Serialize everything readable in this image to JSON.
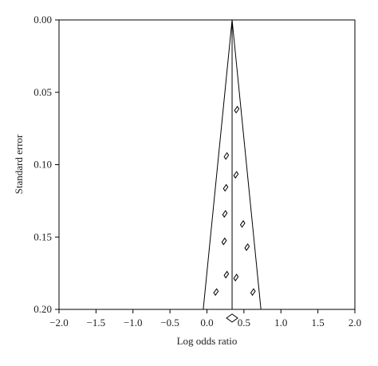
{
  "chart_data": {
    "type": "funnel",
    "xlabel": "Log odds ratio",
    "ylabel": "Standard error",
    "xlim": [
      -2,
      2
    ],
    "ylim": [
      0,
      0.2
    ],
    "y_inverted": true,
    "xticks": [
      {
        "value": -2,
        "label": "−2.0"
      },
      {
        "value": -1.5,
        "label": "−1.5"
      },
      {
        "value": -1,
        "label": "−1.0"
      },
      {
        "value": -0.5,
        "label": "−0.5"
      },
      {
        "value": 0,
        "label": "0.0"
      },
      0.5,
      {
        "value": 1,
        "label": "1.0"
      },
      1.5,
      {
        "value": 2,
        "label": "2.0"
      }
    ],
    "yticks": [
      {
        "value": 0,
        "label": "0.00"
      },
      0.05,
      {
        "value": 0.1,
        "label": "0.10"
      },
      0.15,
      {
        "value": 0.2,
        "label": "0.20"
      }
    ],
    "color": "#000000",
    "points": {
      "x": [
        0.4,
        0.26,
        0.39,
        0.25,
        0.24,
        0.48,
        0.23,
        0.54,
        0.26,
        0.39,
        0.12,
        0.62
      ],
      "y": [
        0.062,
        0.094,
        0.107,
        0.116,
        0.134,
        0.141,
        0.153,
        0.157,
        0.176,
        0.178,
        0.188,
        0.188
      ]
    },
    "pooled": {
      "x": 0.34,
      "y": 0.206
    },
    "funnel": {
      "x": [
        -0.05,
        0.34,
        0.73
      ],
      "y": [
        0.2,
        0,
        0.2
      ]
    }
  }
}
